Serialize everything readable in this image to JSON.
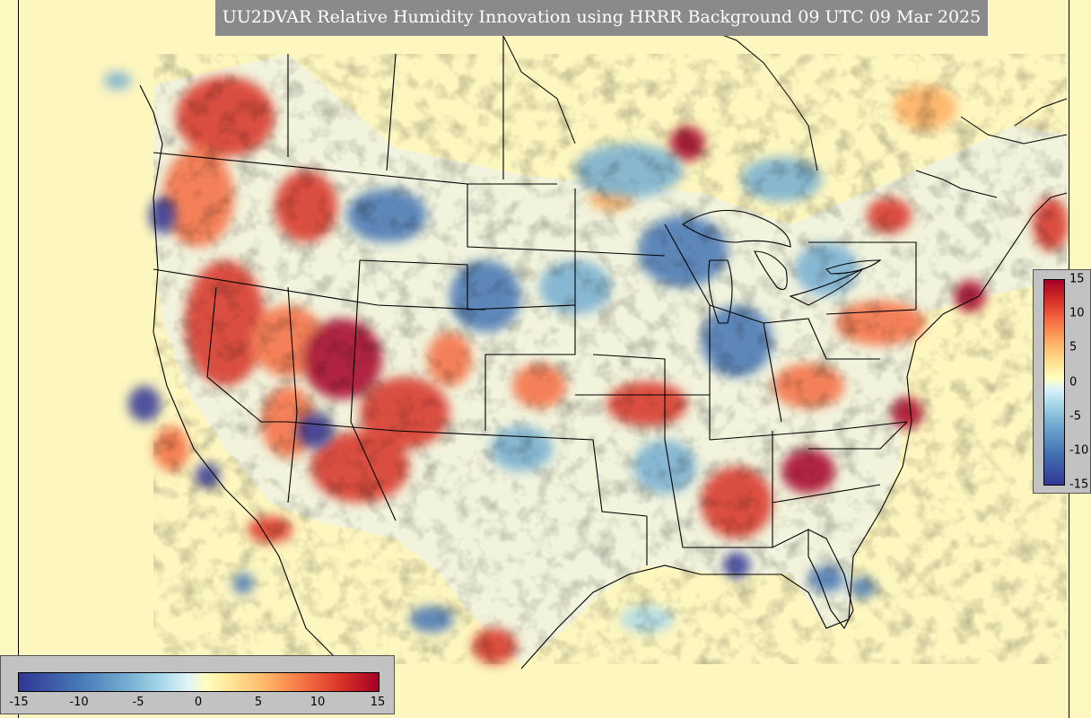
{
  "title": "UU2DVAR Relative Humidity Innovation using HRRR Background 09 UTC 09 Mar 2025",
  "colorbar": {
    "horizontal_ticks": [
      "-15",
      "-10",
      "-5",
      "0",
      "5",
      "10",
      "15"
    ],
    "vertical_ticks": [
      "15",
      "10",
      "5",
      "0",
      "-5",
      "-10",
      "-15"
    ],
    "range": [
      -15,
      15
    ],
    "colormap": [
      "#313695",
      "#4575b4",
      "#74add1",
      "#abd9e9",
      "#e0f3f8",
      "#ffffbf",
      "#fee090",
      "#fdae61",
      "#f46d43",
      "#d73027",
      "#a50026"
    ]
  },
  "map": {
    "background_color": "#fdf6bf",
    "border_color": "#000000",
    "region": "CONUS"
  }
}
